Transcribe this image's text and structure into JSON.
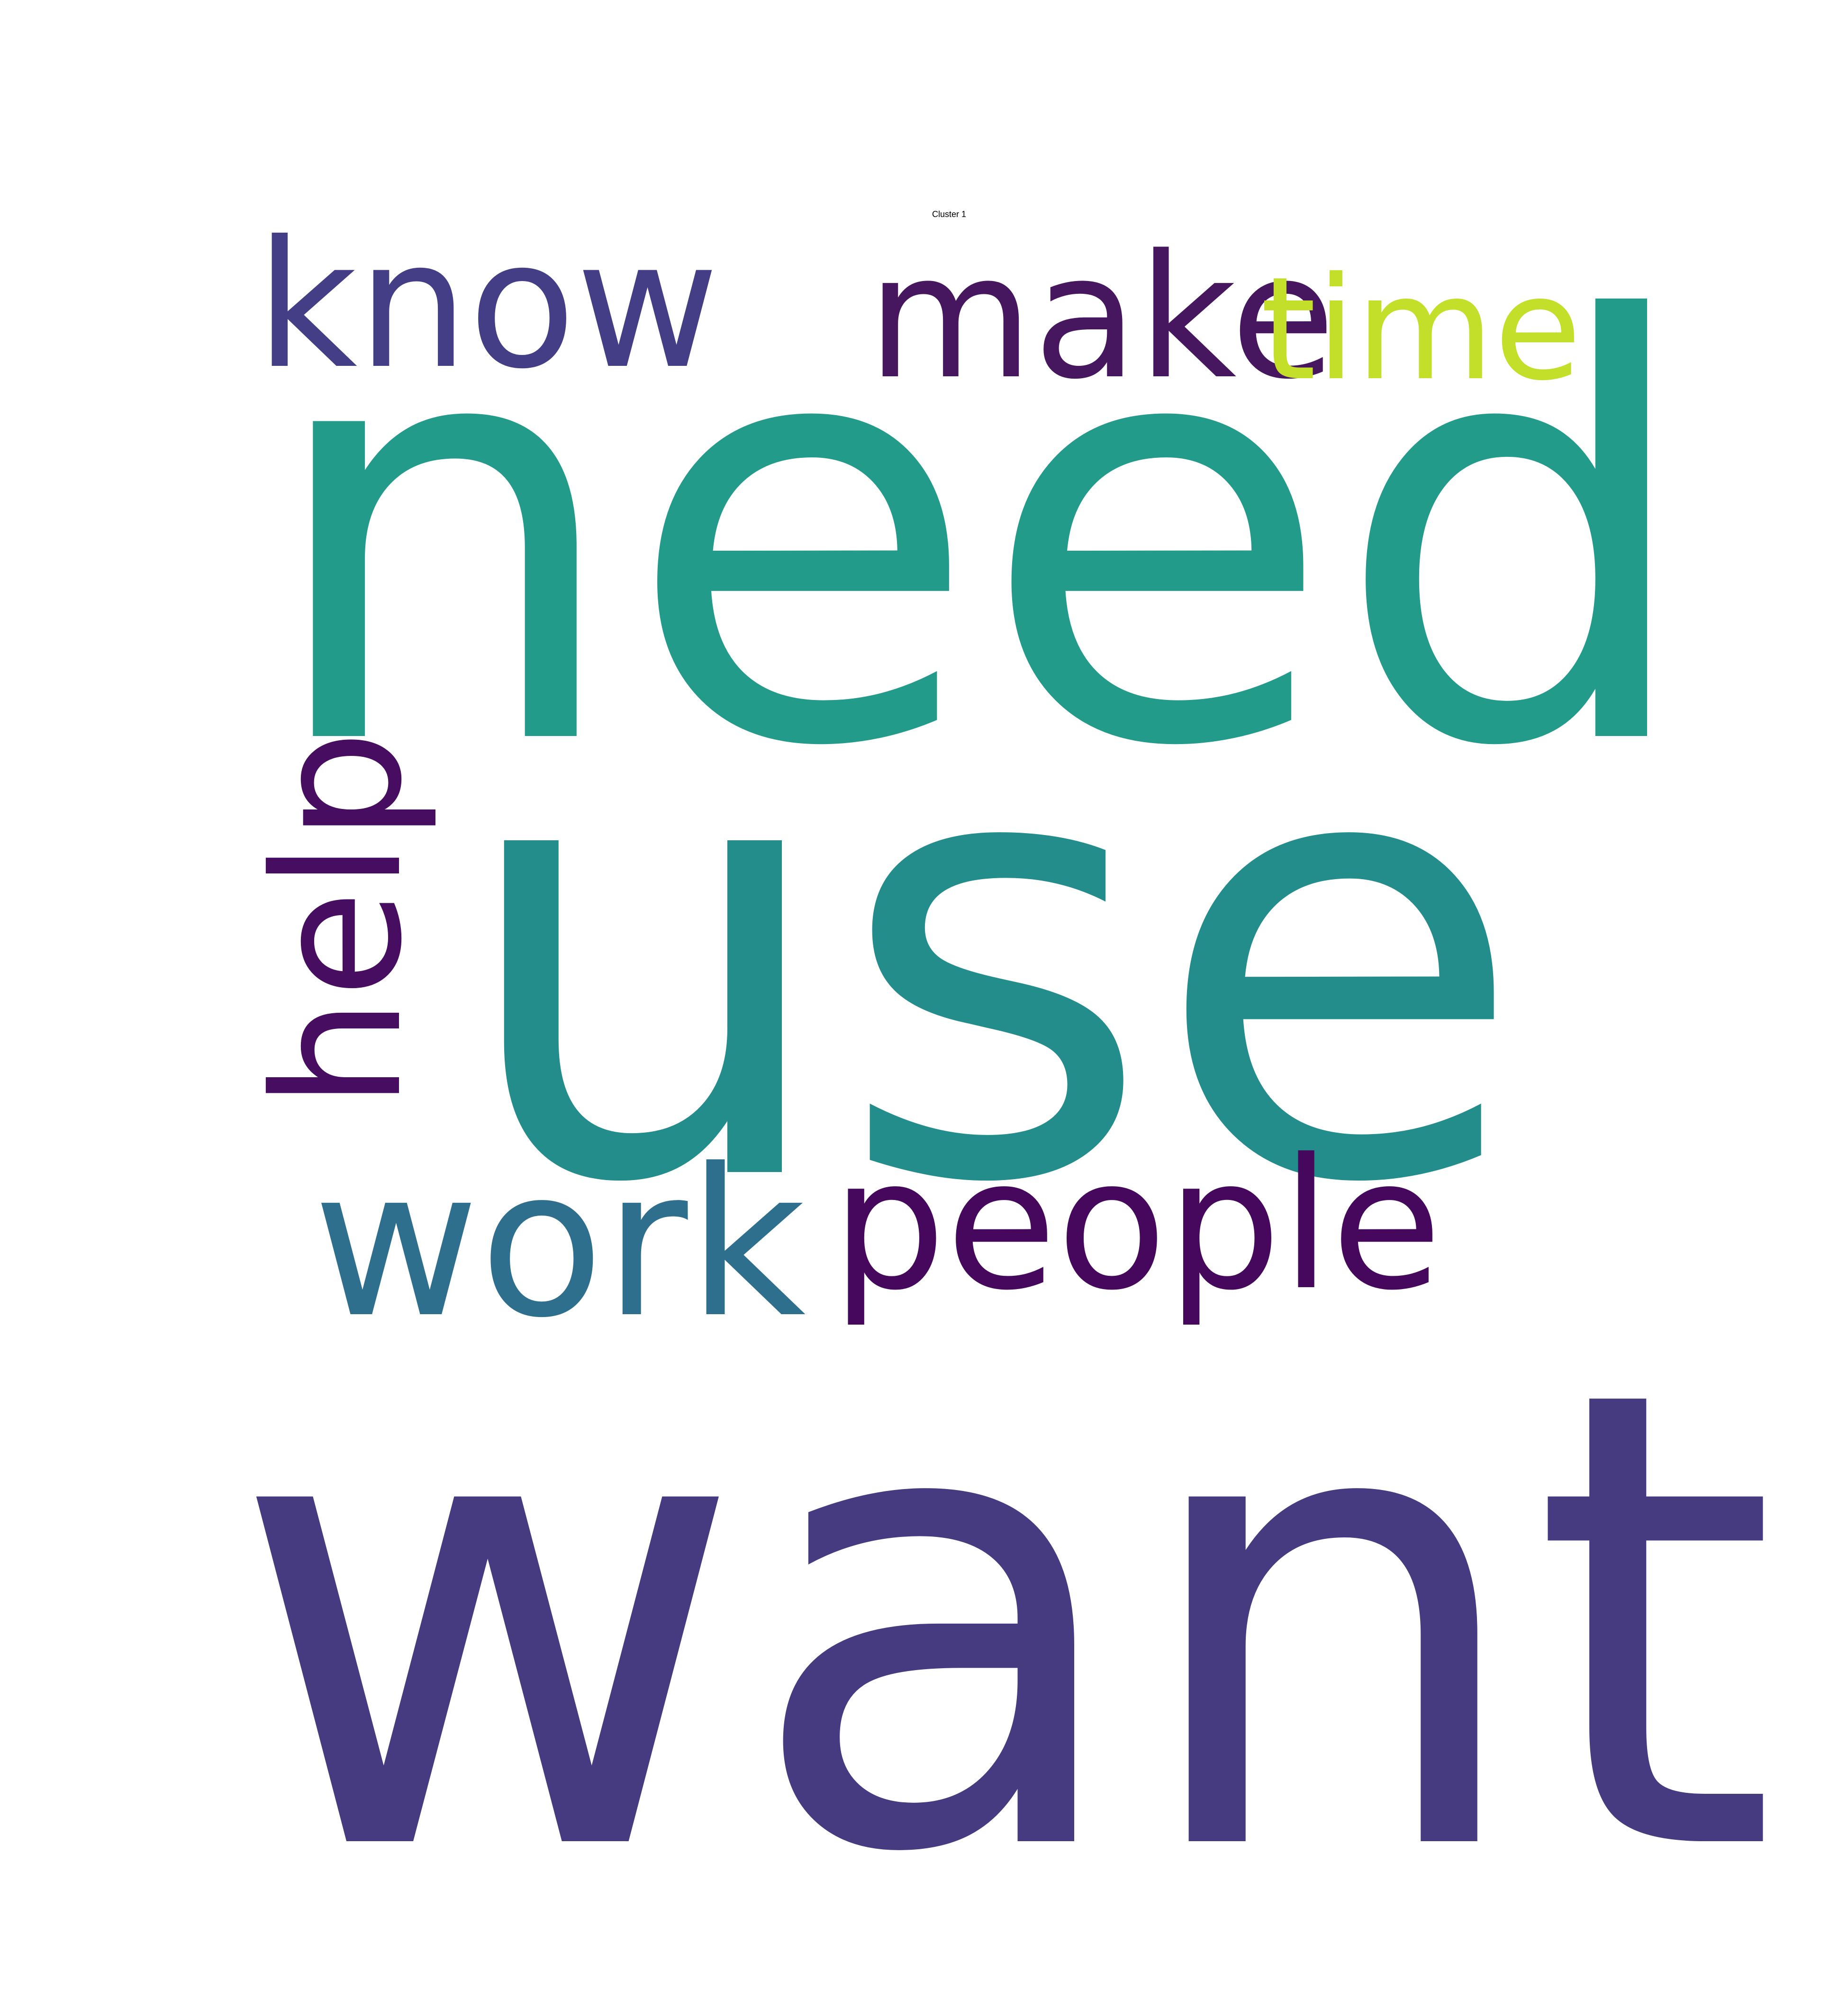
{
  "title": "Cluster 1",
  "words": [
    {
      "text": "want",
      "color": "#463b80"
    },
    {
      "text": "use",
      "color": "#238d8c"
    },
    {
      "text": "need",
      "color": "#229b8a"
    },
    {
      "text": "know",
      "color": "#443e87"
    },
    {
      "text": "make",
      "color": "#46175f"
    },
    {
      "text": "time",
      "color": "#c4df2a"
    },
    {
      "text": "work",
      "color": "#2e6f8e"
    },
    {
      "text": "people",
      "color": "#45085c"
    },
    {
      "text": "help",
      "color": "#470d60"
    }
  ]
}
